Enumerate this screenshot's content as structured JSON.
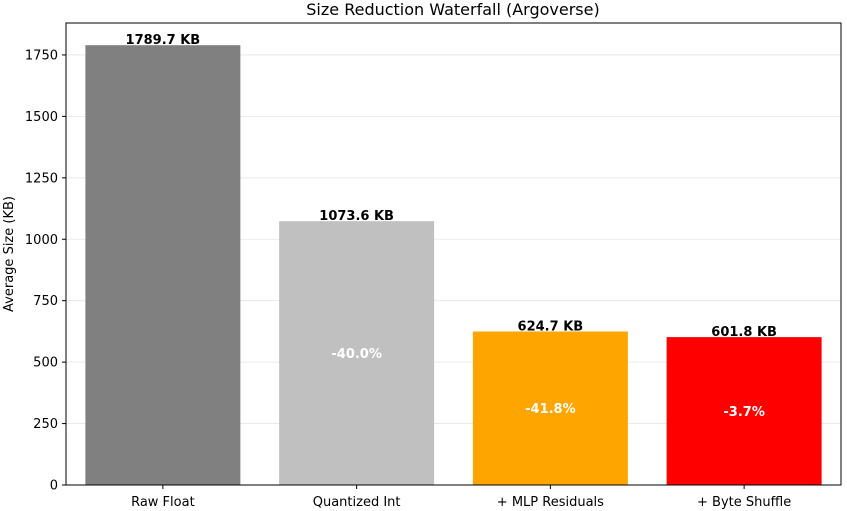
{
  "chart_data": {
    "type": "bar",
    "title": "Size Reduction Waterfall (Argoverse)",
    "xlabel": "",
    "ylabel": "Average Size (KB)",
    "ylim": [
      0,
      1880
    ],
    "yticks": [
      0,
      250,
      500,
      750,
      1000,
      1250,
      1500,
      1750
    ],
    "grid": "horizontal",
    "categories": [
      "Raw Float",
      "Quantized Int",
      "+ MLP Residuals",
      "+ Byte Shuffle"
    ],
    "values": [
      1789.7,
      1073.6,
      624.7,
      601.8
    ],
    "value_labels": [
      "1789.7 KB",
      "1073.6 KB",
      "624.7 KB",
      "601.8 KB"
    ],
    "reduction_labels": [
      "",
      "-40.0%",
      "-41.8%",
      "-3.7%"
    ],
    "colors": [
      "#808080",
      "#c0c0c0",
      "#ffa500",
      "#ff0000"
    ]
  }
}
